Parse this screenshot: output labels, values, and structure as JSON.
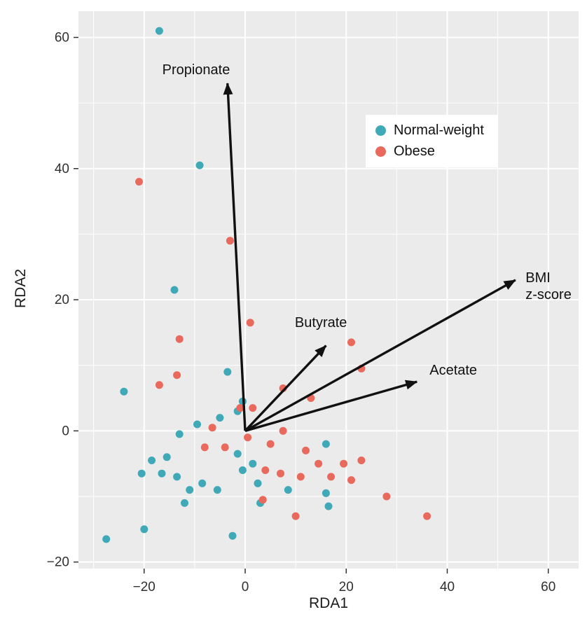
{
  "chart_data": {
    "type": "scatter",
    "title": "",
    "xlabel": "RDA1",
    "ylabel": "RDA2",
    "xlim": [
      -33,
      66
    ],
    "ylim": [
      -21,
      64
    ],
    "x_ticks": [
      -20,
      0,
      20,
      40,
      60
    ],
    "x_tick_labels": [
      "−20",
      "0",
      "20",
      "40",
      "60"
    ],
    "y_ticks": [
      -20,
      0,
      20,
      40,
      60
    ],
    "y_tick_labels": [
      "−20",
      "0",
      "20",
      "40",
      "60"
    ],
    "x_minor": [
      -30,
      -10,
      10,
      30,
      50
    ],
    "y_minor": [
      -10,
      10,
      30,
      50
    ],
    "grid": "white major and minor gridlines on gray panel",
    "legend_position": "top-right-inner",
    "colors": {
      "panel_bg": "#EBEBEB",
      "grid": "#FFFFFF",
      "arrow": "#111111",
      "axis_text": "#303030"
    },
    "series": [
      {
        "id": "normal-weight",
        "name": "Normal-weight",
        "color": "#3FA9B8",
        "points": [
          [
            -17,
            61
          ],
          [
            -9,
            40.5
          ],
          [
            -14,
            21.5
          ],
          [
            -24,
            6
          ],
          [
            -3.5,
            9
          ],
          [
            -0.5,
            4.5
          ],
          [
            -5,
            2
          ],
          [
            -9.5,
            1
          ],
          [
            -1.5,
            3
          ],
          [
            -13,
            -0.5
          ],
          [
            -15.5,
            -4
          ],
          [
            -18.5,
            -4.5
          ],
          [
            -20.5,
            -6.5
          ],
          [
            -16.5,
            -6.5
          ],
          [
            -13.5,
            -7
          ],
          [
            -11,
            -9
          ],
          [
            -8.5,
            -8
          ],
          [
            -12,
            -11
          ],
          [
            -5.5,
            -9
          ],
          [
            -1.5,
            -3.5
          ],
          [
            -0.5,
            -6
          ],
          [
            1.5,
            -5
          ],
          [
            2.5,
            -8
          ],
          [
            3,
            -11
          ],
          [
            -2.5,
            -16
          ],
          [
            -20,
            -15
          ],
          [
            -27.5,
            -16.5
          ],
          [
            16,
            -2
          ],
          [
            8.5,
            -9
          ],
          [
            16,
            -9.5
          ],
          [
            16.5,
            -11.5
          ]
        ]
      },
      {
        "id": "obese",
        "name": "Obese",
        "color": "#E9695C",
        "points": [
          [
            -21,
            38
          ],
          [
            -3,
            29
          ],
          [
            1,
            16.5
          ],
          [
            -13,
            14
          ],
          [
            21,
            13.5
          ],
          [
            23,
            9.5
          ],
          [
            -13.5,
            8.5
          ],
          [
            -17,
            7
          ],
          [
            7.5,
            6.5
          ],
          [
            13,
            5
          ],
          [
            -1,
            3.5
          ],
          [
            1.5,
            3.5
          ],
          [
            -6.5,
            0.5
          ],
          [
            -8,
            -2.5
          ],
          [
            -4,
            -2.5
          ],
          [
            0.5,
            -1
          ],
          [
            5,
            -2
          ],
          [
            7.5,
            0
          ],
          [
            12,
            -3
          ],
          [
            4,
            -6
          ],
          [
            7,
            -6.5
          ],
          [
            11,
            -7
          ],
          [
            14.5,
            -5
          ],
          [
            17,
            -7
          ],
          [
            19.5,
            -5
          ],
          [
            21,
            -7.5
          ],
          [
            23,
            -4.5
          ],
          [
            28,
            -10
          ],
          [
            36,
            -13
          ],
          [
            10,
            -13
          ],
          [
            3.5,
            -10.5
          ]
        ]
      }
    ],
    "vectors": [
      {
        "id": "propionate",
        "label": "Propionate",
        "x": -3.5,
        "y": 53,
        "label_at": [
          -3,
          55
        ],
        "anchor": "end"
      },
      {
        "id": "butyrate",
        "label": "Butyrate",
        "x": 16,
        "y": 13,
        "label_at": [
          15,
          16.5
        ],
        "anchor": "middle"
      },
      {
        "id": "bmi-z-score",
        "label": "BMI\nz-score",
        "x": 53.5,
        "y": 23,
        "label_at": [
          55.5,
          22
        ],
        "anchor": "start"
      },
      {
        "id": "acetate",
        "label": "Acetate",
        "x": 34,
        "y": 7.5,
        "label_at": [
          36.5,
          9.2
        ],
        "anchor": "start"
      }
    ]
  }
}
